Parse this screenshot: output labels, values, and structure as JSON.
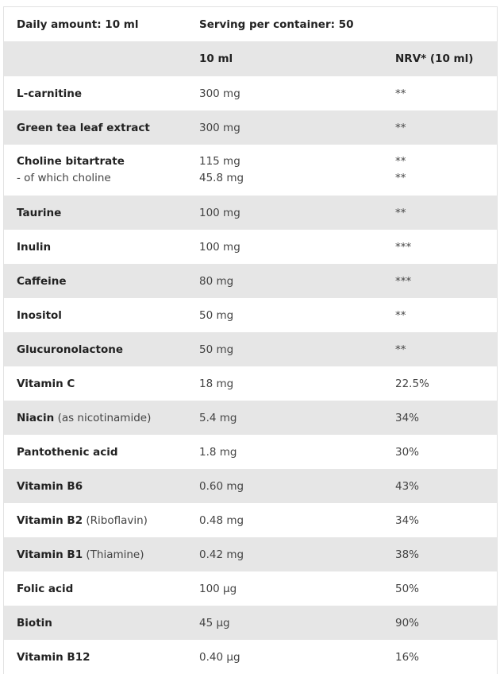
{
  "header": {
    "daily_amount": "Daily amount: 10 ml",
    "servings": "Serving per container: 50"
  },
  "columns": {
    "first": "",
    "amount": "10 ml",
    "nrv": "NRV* (10 ml)"
  },
  "rows": [
    {
      "name": "L-carnitine",
      "extra": "",
      "amount": "300 mg",
      "nrv": "**"
    },
    {
      "name": "Green tea leaf extract",
      "extra": "",
      "amount": "300 mg",
      "nrv": "**"
    },
    {
      "name": "Choline bitartrate",
      "sub_name": "- of which choline",
      "extra": "",
      "amount": "115 mg",
      "sub_amount": "45.8 mg",
      "nrv": "**",
      "sub_nrv": "**"
    },
    {
      "name": "Taurine",
      "extra": "",
      "amount": "100 mg",
      "nrv": "**"
    },
    {
      "name": "Inulin",
      "extra": "",
      "amount": "100 mg",
      "nrv": "***"
    },
    {
      "name": "Caffeine",
      "extra": "",
      "amount": "80 mg",
      "nrv": "***"
    },
    {
      "name": "Inositol",
      "extra": "",
      "amount": "50 mg",
      "nrv": "**"
    },
    {
      "name": "Glucuronolactone",
      "extra": "",
      "amount": "50 mg",
      "nrv": "**"
    },
    {
      "name": "Vitamin C",
      "extra": "",
      "amount": "18 mg",
      "nrv": "22.5%"
    },
    {
      "name": "Niacin",
      "extra": " (as nicotinamide)",
      "amount": "5.4 mg",
      "nrv": "34%"
    },
    {
      "name": "Pantothenic acid",
      "extra": "",
      "amount": "1.8 mg",
      "nrv": "30%"
    },
    {
      "name": "Vitamin B6",
      "extra": "",
      "amount": "0.60 mg",
      "nrv": "43%"
    },
    {
      "name": "Vitamin B2",
      "extra": " (Riboflavin)",
      "amount": "0.48 mg",
      "nrv": "34%"
    },
    {
      "name": "Vitamin B1",
      "extra": " (Thiamine)",
      "amount": "0.42 mg",
      "nrv": "38%"
    },
    {
      "name": "Folic acid",
      "extra": "",
      "amount": "100 µg",
      "nrv": "50%"
    },
    {
      "name": "Biotin",
      "extra": "",
      "amount": "45 µg",
      "nrv": "90%"
    },
    {
      "name": "Vitamin B12",
      "extra": "",
      "amount": "0.40 µg",
      "nrv": "16%"
    }
  ]
}
